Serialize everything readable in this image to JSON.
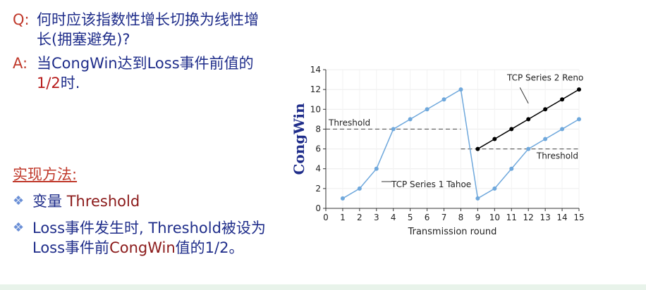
{
  "slide": {
    "q_tag": "Q:",
    "q_text": "何时应该指数性增长切换为线性增长(拥塞避免)?",
    "a_tag": "A:",
    "a_text_pre": "当CongWin达到Loss事件前值的",
    "a_text_frac": "1/2",
    "a_text_post": "时.",
    "method_title": "实现方法:",
    "bullet1_pre": "变量 ",
    "bullet1_var": "Threshold",
    "bullet2_pre": "Loss事件发生时, Threshold被设为Loss事件前",
    "bullet2_var": "CongWin",
    "bullet2_post": "值的1/2。",
    "bullet_glyph": "❖"
  },
  "chart_data": {
    "type": "line",
    "xlabel": "Transmission round",
    "ylabel": "CongWin",
    "xlim": [
      0,
      15
    ],
    "ylim": [
      0,
      14
    ],
    "xticks": [
      0,
      1,
      2,
      3,
      4,
      5,
      6,
      7,
      8,
      9,
      10,
      11,
      12,
      13,
      14,
      15
    ],
    "yticks": [
      0,
      2,
      4,
      6,
      8,
      10,
      12,
      14
    ],
    "grid": true,
    "series": [
      {
        "name": "TCP Series 1 Tahoe",
        "color": "#6fa8dc",
        "x": [
          1,
          2,
          3,
          4,
          5,
          6,
          7,
          8,
          9,
          10,
          11,
          12,
          13,
          14,
          15
        ],
        "y": [
          1,
          2,
          4,
          8,
          9,
          10,
          11,
          12,
          1,
          2,
          4,
          6,
          7,
          8,
          9
        ]
      },
      {
        "name": "TCP Series 2 Reno",
        "color": "#000000",
        "x": [
          9,
          10,
          11,
          12,
          13,
          14,
          15
        ],
        "y": [
          6,
          7,
          8,
          9,
          10,
          11,
          12
        ]
      }
    ],
    "thresholds": [
      {
        "label": "Threshold",
        "y": 8,
        "x_from": 0,
        "x_to": 8
      },
      {
        "label": "Threshold",
        "y": 6,
        "x_from": 8,
        "x_to": 15
      }
    ],
    "annotations": [
      {
        "text": "TCP Series 2 Reno",
        "x": 13,
        "y": 12.6
      },
      {
        "text": "TCP Series 1 Tahoe",
        "x": 3.8,
        "y": 2.4
      }
    ]
  }
}
